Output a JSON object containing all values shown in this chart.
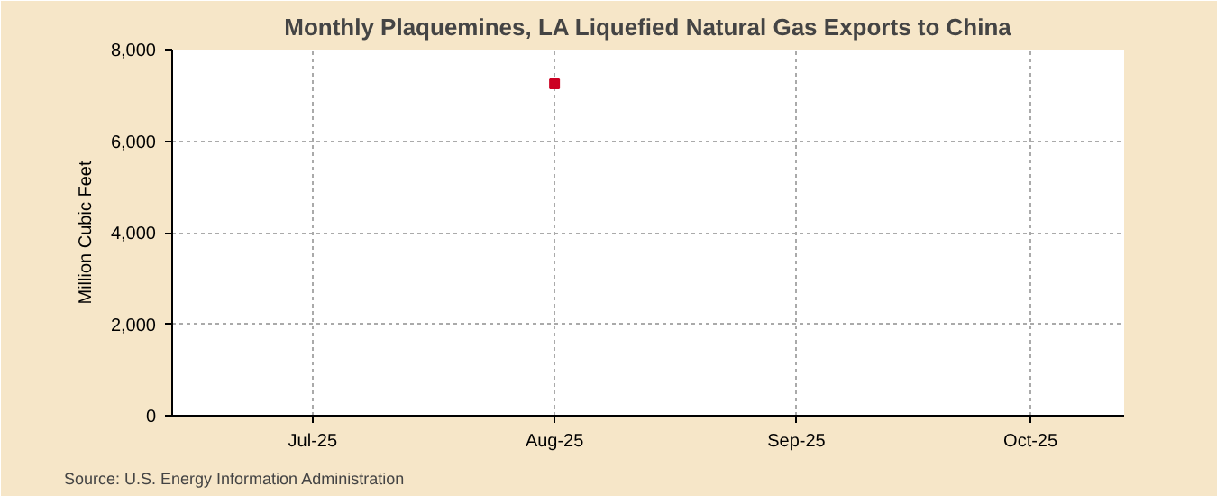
{
  "chart_data": {
    "type": "scatter",
    "title": "Monthly Plaquemines, LA Liquefied Natural Gas Exports to China",
    "ylabel": "Million Cubic Feet",
    "x": [
      "2025-08"
    ],
    "series": [
      {
        "color": "#cc0022",
        "values": [
          7250
        ]
      }
    ],
    "xlim": [
      "2025-06-13",
      "2025-10-13"
    ],
    "xticks": [
      {
        "value": "2025-07",
        "label": "Jul-25"
      },
      {
        "value": "2025-08",
        "label": "Aug-25"
      },
      {
        "value": "2025-09",
        "label": "Sep-25"
      },
      {
        "value": "2025-10",
        "label": "Oct-25"
      }
    ],
    "ylim": [
      0,
      8000
    ],
    "yticks": [
      {
        "value": 0,
        "label": "0"
      },
      {
        "value": 2000,
        "label": "2,000"
      },
      {
        "value": 4000,
        "label": "4,000"
      },
      {
        "value": 6000,
        "label": "6,000"
      },
      {
        "value": 8000,
        "label": "8,000"
      }
    ],
    "grid": true,
    "marker": "square",
    "annotations": [
      "Source: U.S. Energy Information Administration"
    ]
  }
}
